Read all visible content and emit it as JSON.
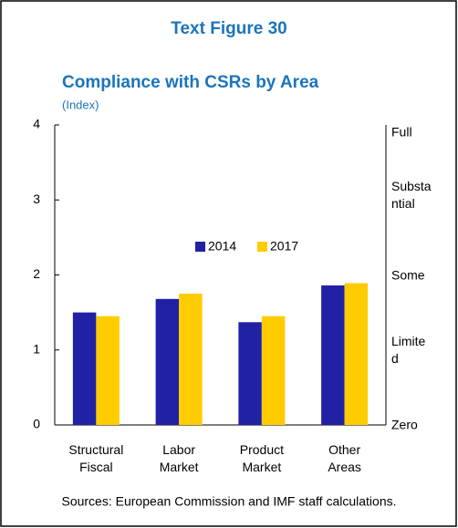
{
  "chart_data": {
    "type": "bar",
    "figure_label": "Text Figure 30",
    "title": "Compliance with CSRs by Area",
    "subtitle": "(Index)",
    "categories": [
      "Structural Fiscal",
      "Labor Market",
      "Product Market",
      "Other Areas"
    ],
    "series": [
      {
        "name": "2014",
        "color": "#2121a6",
        "values": [
          1.5,
          1.68,
          1.37,
          1.86
        ]
      },
      {
        "name": "2017",
        "color": "#ffcc00",
        "values": [
          1.45,
          1.75,
          1.45,
          1.89
        ]
      }
    ],
    "ylim": [
      0,
      4
    ],
    "yticks": [
      0,
      1,
      2,
      3,
      4
    ],
    "y2lim": [
      0,
      4
    ],
    "y2ticks": [
      {
        "value": 0,
        "label": "Zero"
      },
      {
        "value": 1,
        "label": "Limited"
      },
      {
        "value": 2,
        "label": "Some"
      },
      {
        "value": 3.06,
        "label": "Substantial"
      },
      {
        "value": 3.9,
        "label": "Full"
      }
    ],
    "source": "Sources: European Commission and IMF staff calculations."
  }
}
